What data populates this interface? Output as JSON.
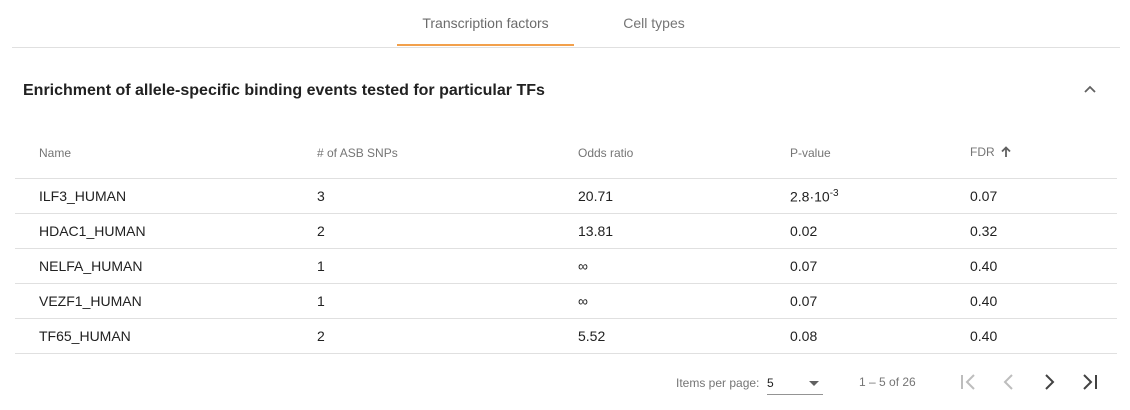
{
  "tabs": [
    {
      "label": "Transcription factors",
      "active": true
    },
    {
      "label": "Cell types",
      "active": false
    }
  ],
  "panel": {
    "title": "Enrichment of allele-specific binding events tested for particular TFs",
    "collapse_icon": "chevron-up-icon"
  },
  "table": {
    "headers": {
      "name": "Name",
      "asb": "# of ASB SNPs",
      "odds": "Odds ratio",
      "pvalue": "P-value",
      "fdr": "FDR",
      "fdr_sort_icon": "arrow-up-icon"
    },
    "rows": [
      {
        "name": "ILF3_HUMAN",
        "asb": "3",
        "odds": "20.71",
        "pvalue_base": "2.8·10",
        "pvalue_exp": "-3",
        "pvalue": "",
        "fdr": "0.07"
      },
      {
        "name": "HDAC1_HUMAN",
        "asb": "2",
        "odds": "13.81",
        "pvalue": "0.02",
        "fdr": "0.32"
      },
      {
        "name": "NELFA_HUMAN",
        "asb": "1",
        "odds": "∞",
        "pvalue": "0.07",
        "fdr": "0.40"
      },
      {
        "name": "VEZF1_HUMAN",
        "asb": "1",
        "odds": "∞",
        "pvalue": "0.07",
        "fdr": "0.40"
      },
      {
        "name": "TF65_HUMAN",
        "asb": "2",
        "odds": "5.52",
        "pvalue": "0.08",
        "fdr": "0.40"
      }
    ]
  },
  "paginator": {
    "items_per_page_label": "Items per page:",
    "items_per_page_value": "5",
    "range_label": "1 – 5 of 26",
    "icons": [
      "first-page-icon",
      "previous-page-icon",
      "next-page-icon",
      "last-page-icon"
    ]
  },
  "colors": {
    "tab_ink": "#f2a04b",
    "text": "#212121",
    "muted": "#757575",
    "divider": "#e0e0e0"
  }
}
